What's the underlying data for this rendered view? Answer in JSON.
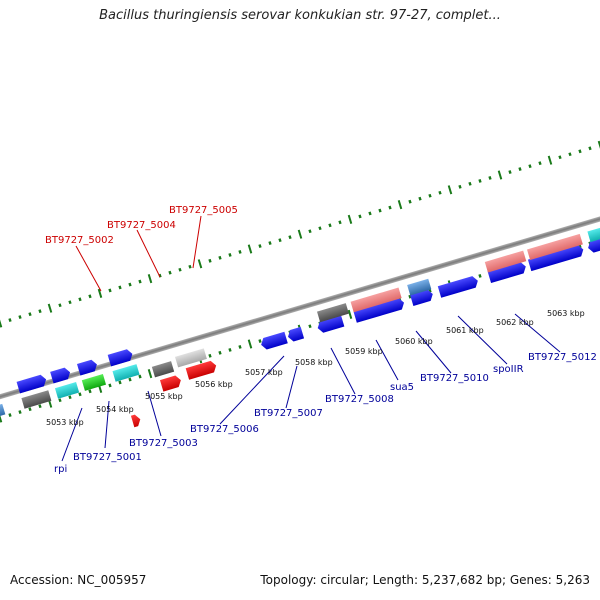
{
  "title": "Bacillus thuringiensis serovar konkukian str. 97-27, complet...",
  "footer": {
    "accession": "Accession: NC_005957",
    "summary": "Topology: circular; Length: 5,237,682 bp; Genes: 5,263"
  },
  "tick_labels": [
    "5053 kbp",
    "5054 kbp",
    "5055 kbp",
    "5056 kbp",
    "5057 kbp",
    "5058 kbp",
    "5059 kbp",
    "5060 kbp",
    "5061 kbp",
    "5062 kbp",
    "5063 kbp"
  ],
  "gene_labels": [
    {
      "text": "BT9727_5005",
      "color": "red"
    },
    {
      "text": "BT9727_5004",
      "color": "red"
    },
    {
      "text": "BT9727_5002",
      "color": "red"
    },
    {
      "text": "rpi",
      "color": "blue"
    },
    {
      "text": "BT9727_5001",
      "color": "blue"
    },
    {
      "text": "BT9727_5003",
      "color": "blue"
    },
    {
      "text": "BT9727_5006",
      "color": "blue"
    },
    {
      "text": "BT9727_5007",
      "color": "blue"
    },
    {
      "text": "BT9727_5008",
      "color": "blue"
    },
    {
      "text": "sua5",
      "color": "blue"
    },
    {
      "text": "BT9727_5010",
      "color": "blue"
    },
    {
      "text": "spoIIR",
      "color": "blue"
    },
    {
      "text": "BT9727_5012",
      "color": "blue"
    }
  ],
  "colors": {
    "backbone": "#8a8a8a",
    "tick": "#1a7a1a",
    "blue_gene": "#1a1aee",
    "red_gene": "#ee1111",
    "pink_gene": "#f08080",
    "cyan_gene": "#22cccc",
    "green_gene": "#22cc22",
    "gray_gene": "#666666",
    "lightgray_gene": "#c8c8c8",
    "steel_gene": "#4a86c8",
    "red_label": "#cc0000",
    "blue_label": "#000099"
  }
}
